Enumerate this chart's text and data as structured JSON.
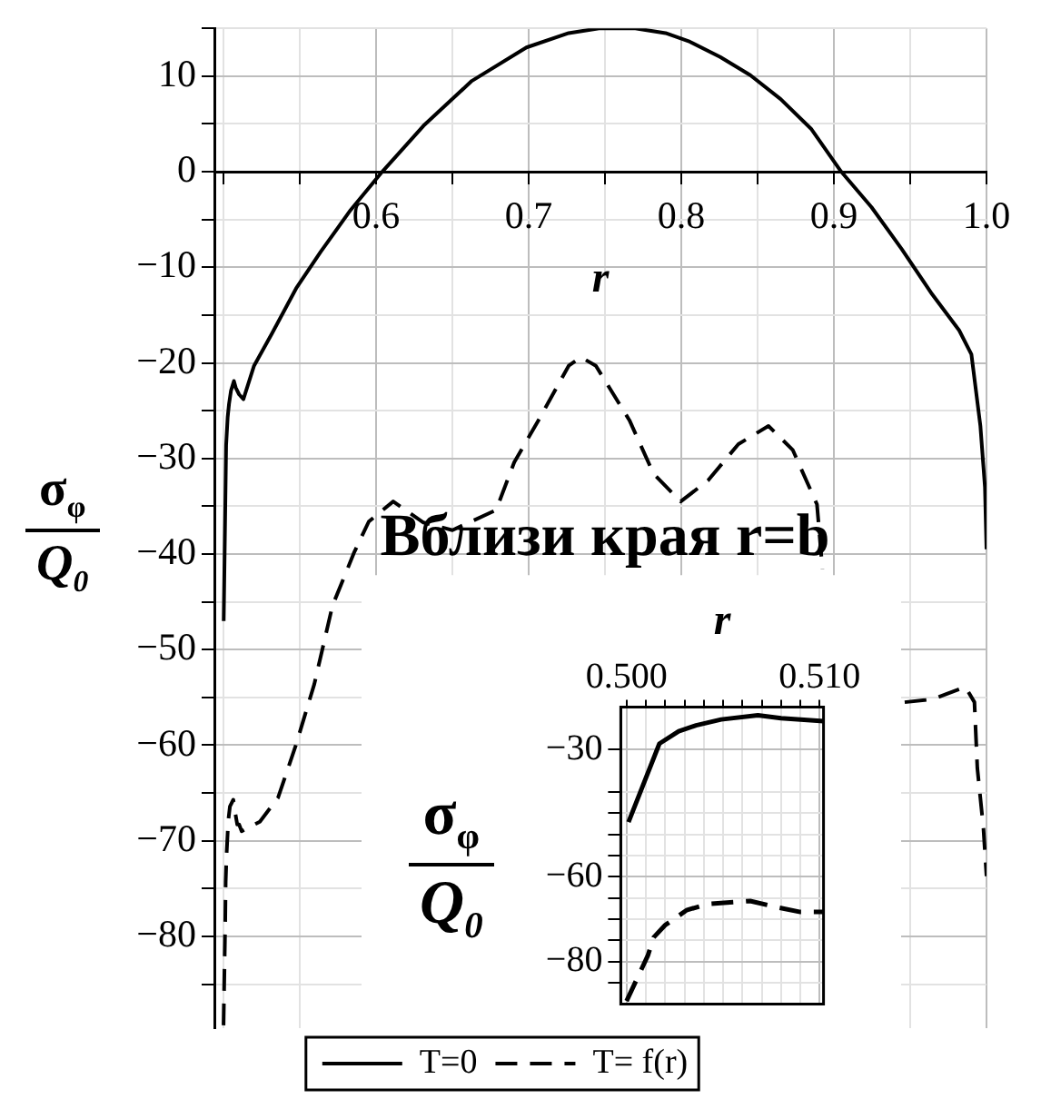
{
  "chart_data": [
    {
      "type": "line",
      "xlabel": "r",
      "ylabel": "σ$_{φ}$\nQ$_{0}$",
      "xlim": [
        0.494,
        1.0
      ],
      "ylim": [
        -89.6,
        15
      ],
      "xticks": [
        {
          "value": 0.5,
          "label": null
        },
        {
          "value": 0.55,
          "label": null
        },
        0.6,
        {
          "value": 0.65,
          "label": null
        },
        0.7,
        {
          "value": 0.75,
          "label": null
        },
        0.8,
        {
          "value": 0.85,
          "label": null
        },
        0.9,
        {
          "value": 0.95,
          "label": null
        },
        {
          "value": 1,
          "label": "1.0"
        }
      ],
      "yticks": [
        {
          "value": 15,
          "label": null
        },
        10,
        {
          "value": 5,
          "label": null
        },
        0,
        {
          "value": -5,
          "label": null
        },
        -10,
        {
          "value": -15,
          "label": null
        },
        -20,
        {
          "value": -25,
          "label": null
        },
        -30,
        {
          "value": -35,
          "label": null
        },
        -40,
        {
          "value": -45,
          "label": null
        },
        -50,
        {
          "value": -55,
          "label": null
        },
        -60,
        {
          "value": -65,
          "label": null
        },
        -70,
        {
          "value": -75,
          "label": null
        },
        -80,
        {
          "value": -85,
          "label": null
        }
      ],
      "grid": true,
      "legend": "bottom",
      "marker": "none",
      "series": [
        {
          "name": "T=0",
          "color": "#000000",
          "line_style": "solid",
          "x": [
            0.5001,
            0.5017,
            0.5027,
            0.5036,
            0.5049,
            0.5068,
            0.508,
            0.5102,
            0.513,
            0.52,
            0.5318,
            0.5476,
            0.5636,
            0.5833,
            0.604,
            0.631,
            0.6627,
            0.6985,
            0.7262,
            0.746,
            0.7699,
            0.7897,
            0.8056,
            0.8255,
            0.8452,
            0.8651,
            0.885,
            0.9048,
            0.9246,
            0.9445,
            0.9643,
            0.9821,
            0.9901,
            0.996,
            0.999,
            1.0
          ],
          "values": [
            -47,
            -28.6,
            -25.7,
            -24.3,
            -22.9,
            -21.9,
            -22.6,
            -23.3,
            -23.8,
            -20.3,
            -16.9,
            -12.2,
            -8.4,
            -4,
            0,
            4.8,
            9.5,
            13,
            14.5,
            15,
            15,
            14.5,
            13.6,
            12,
            10.1,
            7.6,
            4.5,
            0,
            -3.7,
            -8.1,
            -12.8,
            -16.6,
            -19.1,
            -26.6,
            -33,
            -39.5
          ]
        },
        {
          "name": "T= f(r)",
          "color": "#000000",
          "line_style": "dashed",
          "x": [
            0.5,
            0.5011,
            0.5014,
            0.502,
            0.5031,
            0.5042,
            0.5064,
            0.5077,
            0.509,
            0.5102,
            0.5119,
            0.5238,
            0.5357,
            0.5476,
            0.5595,
            0.5714,
            0.5854,
            0.5952,
            0.6112,
            0.631,
            0.65,
            0.6786,
            0.6905,
            0.7064,
            0.7262,
            0.7342,
            0.744,
            0.766,
            0.7818,
            0.7996,
            0.8175,
            0.8374,
            0.8571,
            0.873,
            0.8889,
            0.8925,
            0.92,
            0.9464,
            0.9643,
            0.9862,
            0.9921,
            0.994,
            0.998,
            1.0
          ],
          "values": [
            -89.3,
            -78.6,
            -74.3,
            -71.4,
            -67.9,
            -66.4,
            -65.7,
            -67.1,
            -68.3,
            -68.3,
            -69,
            -68,
            -65.5,
            -59.9,
            -53.6,
            -45.4,
            -39.9,
            -36.6,
            -34.5,
            -36.7,
            -37.5,
            -35.4,
            -30.4,
            -26,
            -20.3,
            -19.4,
            -20.3,
            -26,
            -31.6,
            -34.5,
            -32.3,
            -28.5,
            -26.6,
            -29.1,
            -34.8,
            -41.6,
            null,
            -55.5,
            -55.2,
            -53.9,
            -55.5,
            -62.4,
            -68.7,
            -73.7
          ]
        }
      ]
    },
    {
      "type": "line",
      "title": "Вблизи края r=b",
      "xlabel": "r",
      "ylabel": "σ$_{φ}$\nQ$_{0}$",
      "xlim": [
        0.4997,
        0.5102
      ],
      "ylim": [
        -90,
        -20
      ],
      "xticks": [
        {
          "value": 0.5,
          "label": "0.500"
        },
        {
          "value": 0.501,
          "label": null
        },
        {
          "value": 0.502,
          "label": null
        },
        {
          "value": 0.503,
          "label": null
        },
        {
          "value": 0.504,
          "label": null
        },
        {
          "value": 0.505,
          "label": null
        },
        {
          "value": 0.506,
          "label": null
        },
        {
          "value": 0.507,
          "label": null
        },
        {
          "value": 0.508,
          "label": null
        },
        {
          "value": 0.509,
          "label": null
        },
        {
          "value": 0.51,
          "label": "0.510"
        }
      ],
      "yticks": [
        -30,
        {
          "value": -40,
          "label": null
        },
        {
          "value": -45,
          "label": null
        },
        {
          "value": -50,
          "label": null
        },
        {
          "value": -55,
          "label": null
        },
        -60,
        {
          "value": -65,
          "label": null
        },
        {
          "value": -70,
          "label": null
        },
        {
          "value": -75,
          "label": null
        },
        -80,
        {
          "value": -85,
          "label": null
        }
      ],
      "grid": true,
      "marker": "none",
      "series": [
        {
          "color": "#000000",
          "line_style": "solid",
          "x": [
            0.5001,
            0.5017,
            0.5027,
            0.5036,
            0.5049,
            0.5068,
            0.508,
            0.5102
          ],
          "values": [
            -47.1,
            -28.6,
            -25.7,
            -24.3,
            -22.9,
            -21.9,
            -22.6,
            -23.3
          ]
        },
        {
          "color": "#000000",
          "line_style": "dashed",
          "x": [
            0.5,
            0.5011,
            0.5014,
            0.502,
            0.5031,
            0.5042,
            0.5064,
            0.5077,
            0.509,
            0.5102
          ],
          "values": [
            -89.3,
            -78.6,
            -74.3,
            -71.4,
            -67.9,
            -66.4,
            -65.7,
            -67.1,
            -68.3,
            -68.3
          ]
        }
      ]
    }
  ]
}
